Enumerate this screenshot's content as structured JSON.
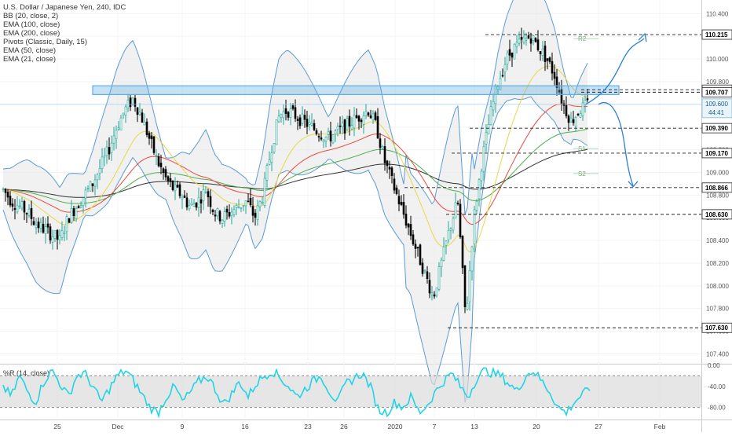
{
  "chart_data": {
    "type": "candlestick",
    "title": "U.S. Dollar / Japanese Yen, 240, IDC",
    "indicators": [
      "BB (20, close, 2)",
      "EMA (100, close)",
      "EMA (200, close)",
      "Pivots (Classic, Daily, 15)",
      "EMA (50, close)",
      "EMA (21, close)"
    ],
    "oscillator_label": "%R (14, close)",
    "price_axis": {
      "ticks": [
        "110.400",
        "110.200",
        "110.000",
        "109.800",
        "109.600",
        "109.400",
        "109.200",
        "109.000",
        "108.800",
        "108.600",
        "108.400",
        "108.200",
        "108.000",
        "107.800",
        "107.600",
        "107.400"
      ],
      "range": [
        107.32,
        110.52
      ]
    },
    "osc_axis": {
      "ticks": [
        "0.00",
        "-40.00",
        "-80.00"
      ],
      "range": [
        -100,
        0
      ]
    },
    "x_ticks": [
      "25",
      "Dec",
      "9",
      "16",
      "23",
      "26",
      "2020",
      "7",
      "13",
      "20",
      "27",
      "Feb"
    ],
    "levels": [
      {
        "label": "110.215",
        "value": 110.215
      },
      {
        "label": "109.729",
        "value": 109.729
      },
      {
        "label": "109.707",
        "value": 109.707
      },
      {
        "label": "109.390",
        "value": 109.39
      },
      {
        "label": "109.170",
        "value": 109.17
      },
      {
        "label": "108.866",
        "value": 108.866
      },
      {
        "label": "108.630",
        "value": 108.63
      },
      {
        "label": "107.630",
        "value": 107.63
      }
    ],
    "current_price": {
      "label": "109.600",
      "countdown": "44:41",
      "value": 109.6
    },
    "pivot_labels": [
      {
        "label": "R2",
        "value": 110.18
      },
      {
        "label": "S1",
        "value": 109.21
      },
      {
        "label": "S2",
        "value": 108.99
      }
    ],
    "resistance_zone": [
      109.7,
      109.75
    ],
    "close_series": [
      108.85,
      108.75,
      108.7,
      108.65,
      108.55,
      108.5,
      108.45,
      108.4,
      108.6,
      108.7,
      108.8,
      108.9,
      109.05,
      109.2,
      109.4,
      109.55,
      109.65,
      109.5,
      109.3,
      109.1,
      108.95,
      108.85,
      108.8,
      108.7,
      108.75,
      108.85,
      108.65,
      108.6,
      108.65,
      108.7,
      108.75,
      108.6,
      108.8,
      109.2,
      109.5,
      109.55,
      109.5,
      109.45,
      109.4,
      109.35,
      109.3,
      109.35,
      109.4,
      109.45,
      109.5,
      109.55,
      109.4,
      109.1,
      108.9,
      108.7,
      108.5,
      108.3,
      108.1,
      107.9,
      108.2,
      108.5,
      108.75,
      107.7,
      108.6,
      109.1,
      109.5,
      109.8,
      110.0,
      110.1,
      110.15,
      110.2,
      110.1,
      110.0,
      109.85,
      109.6,
      109.45,
      109.55,
      109.6
    ],
    "percent_r_series": [
      -40,
      -60,
      -20,
      -50,
      -70,
      -30,
      -10,
      -35,
      -60,
      -20,
      -15,
      -40,
      -70,
      -45,
      -20,
      -10,
      -30,
      -55,
      -80,
      -90,
      -60,
      -40,
      -70,
      -50,
      -30,
      -20,
      -45,
      -75,
      -55,
      -30,
      -60,
      -35,
      -20,
      -10,
      -25,
      -40,
      -60,
      -45,
      -30,
      -20,
      -50,
      -70,
      -35,
      -25,
      -15,
      -40,
      -85,
      -90,
      -70,
      -80,
      -60,
      -90,
      -75,
      -50,
      -30,
      -15,
      -40,
      -60,
      -25,
      -10,
      -15,
      -20,
      -35,
      -50,
      -20,
      -10,
      -30,
      -50,
      -80,
      -90,
      -70,
      -55,
      -45
    ],
    "colors": {
      "up": "#26a69a",
      "down": "#000000",
      "candle_up": "#ffffff",
      "ema21": "#e6d84a",
      "ema50": "#e84b3c",
      "ema100": "#4caf50",
      "ema200": "#333333",
      "bb": "#5b9bd5",
      "zone": "#5dade2",
      "arrow": "#2e7fd6",
      "wr": "#21d4e5"
    }
  }
}
